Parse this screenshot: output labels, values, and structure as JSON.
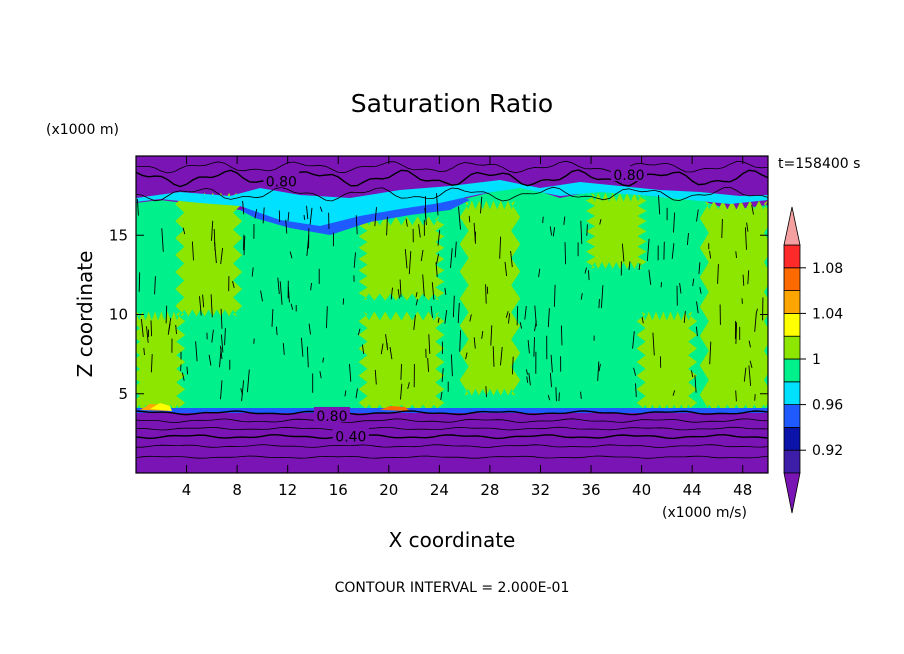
{
  "chart_data": {
    "type": "heatmap",
    "title": "Saturation Ratio",
    "xlabel": "X coordinate",
    "ylabel": "Z coordinate",
    "x_unit_label": "(x1000 m/s)",
    "y_unit_label": "(x1000 m)",
    "time_label": "t=158400 s",
    "footer": "CONTOUR INTERVAL = 2.000E-01",
    "xlim": [
      0,
      50
    ],
    "ylim": [
      0,
      20
    ],
    "x_ticks": [
      4,
      8,
      12,
      16,
      20,
      24,
      28,
      32,
      36,
      40,
      44,
      48
    ],
    "y_ticks": [
      5,
      10,
      15
    ],
    "contour_labels": [
      {
        "text": "0.80",
        "x": 11.5,
        "y": 18.4
      },
      {
        "text": "0.80",
        "x": 39.0,
        "y": 18.8
      },
      {
        "text": "0.80",
        "x": 15.5,
        "y": 3.6
      },
      {
        "text": "0.40",
        "x": 17.0,
        "y": 2.3
      }
    ],
    "colorbar": {
      "levels": [
        {
          "lower": null,
          "upper": 0.9,
          "color": "#7a14b4"
        },
        {
          "lower": 0.9,
          "upper": 0.92,
          "color": "#3c1ea8"
        },
        {
          "lower": 0.92,
          "upper": 0.94,
          "color": "#0a14a8"
        },
        {
          "lower": 0.94,
          "upper": 0.96,
          "color": "#1e5aff"
        },
        {
          "lower": 0.96,
          "upper": 0.98,
          "color": "#00e0ff"
        },
        {
          "lower": 0.98,
          "upper": 1.0,
          "color": "#00f08c"
        },
        {
          "lower": 1.0,
          "upper": 1.02,
          "color": "#8ce600"
        },
        {
          "lower": 1.02,
          "upper": 1.04,
          "color": "#ffff00"
        },
        {
          "lower": 1.04,
          "upper": 1.06,
          "color": "#ffa500"
        },
        {
          "lower": 1.06,
          "upper": 1.08,
          "color": "#ff6a00"
        },
        {
          "lower": 1.08,
          "upper": 1.1,
          "color": "#ff2a2a"
        },
        {
          "lower": 1.1,
          "upper": null,
          "color": "#f4a0a0"
        }
      ],
      "tick_labels": [
        "0.92",
        "0.96",
        "1",
        "1.04",
        "1.08"
      ]
    },
    "regions": [
      {
        "name": "lower-dry-layer",
        "z_range": [
          0,
          3.8
        ],
        "value": "<0.90",
        "color": "#7a14b4"
      },
      {
        "name": "mid-layer",
        "z_range": [
          3.8,
          17.5
        ],
        "value": "0.98-1.02",
        "colors": [
          "#00f08c",
          "#8ce600"
        ]
      },
      {
        "name": "upper-dry-layer",
        "z_range": [
          17.5,
          20
        ],
        "value": "<0.90",
        "color": "#7a14b4"
      }
    ],
    "green_patches": [
      {
        "x": [
          0,
          3.5
        ],
        "z": [
          4,
          10
        ]
      },
      {
        "x": [
          3.5,
          8
        ],
        "z": [
          10,
          17.5
        ]
      },
      {
        "x": [
          18,
          24
        ],
        "z": [
          4,
          10
        ]
      },
      {
        "x": [
          18,
          24
        ],
        "z": [
          11,
          16
        ]
      },
      {
        "x": [
          26,
          30
        ],
        "z": [
          5,
          17
        ]
      },
      {
        "x": [
          36,
          40
        ],
        "z": [
          13,
          17.5
        ]
      },
      {
        "x": [
          40,
          44
        ],
        "z": [
          4,
          10
        ]
      },
      {
        "x": [
          45,
          50
        ],
        "z": [
          4,
          17
        ]
      }
    ]
  }
}
